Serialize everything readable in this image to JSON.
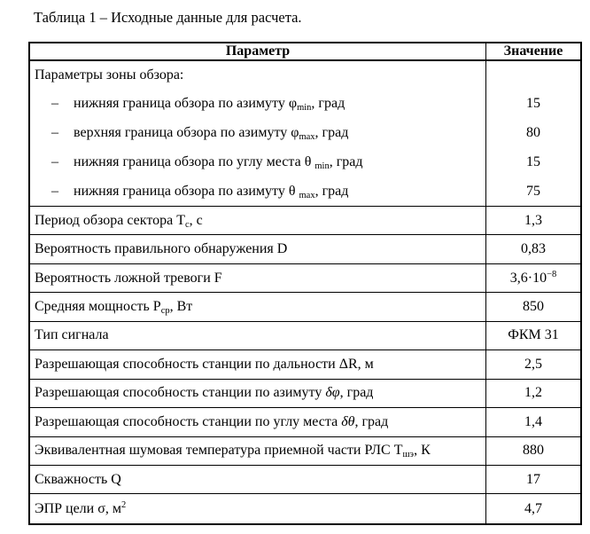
{
  "colors": {
    "text": "#000000",
    "border": "#000000",
    "background": "#ffffff"
  },
  "doc": {
    "title": "Таблица 1 – Исходные данные для расчета."
  },
  "table": {
    "header": {
      "param": "Параметр",
      "value": "Значение"
    },
    "group": {
      "label": "Параметры зоны обзора:",
      "items": [
        {
          "dash": "–",
          "pre": "нижняя граница обзора по азимуту φ",
          "sub": "min",
          "post": ", град",
          "value": "15"
        },
        {
          "dash": "–",
          "pre": "верхняя граница обзора по азимуту φ",
          "sub": "max",
          "post": ", град",
          "value": "80"
        },
        {
          "dash": "–",
          "pre": "нижняя граница обзора по углу места θ ",
          "sub": "min",
          "post": ", град",
          "value": "15"
        },
        {
          "dash": "–",
          "pre": "нижняя граница обзора по азимуту θ ",
          "sub": "max",
          "post": ", град",
          "value": "75"
        }
      ]
    },
    "rows": [
      {
        "pre": "Период обзора сектора Т",
        "sub": "с",
        "post": ", с",
        "value": "1,3"
      },
      {
        "pre": "Вероятность правильного обнаружения D",
        "value": "0,83"
      },
      {
        "pre": "Вероятность ложной тревоги F",
        "value_pre": "3,6·10",
        "value_sup": "−8"
      },
      {
        "pre": "Средняя мощность Р",
        "sub": "ср",
        "post": ", Вт",
        "value": "850"
      },
      {
        "pre": "Тип сигнала",
        "value": "ФКМ 31"
      },
      {
        "pre": "Разрешающая способность станции по дальности ΔR, м",
        "value": "2,5"
      },
      {
        "pre": "Разрешающая способность станции по азимуту ",
        "italic": "δφ",
        "post": ", град",
        "value": "1,2"
      },
      {
        "pre": "Разрешающая способность станции по углу места ",
        "italic": "δθ",
        "post": ", град",
        "value": "1,4"
      },
      {
        "pre": "Эквивалентная шумовая температура приемной части РЛС Т",
        "sub": "шэ",
        "post": ", К",
        "value": "880"
      },
      {
        "pre": "Скважность Q",
        "value": "17"
      },
      {
        "pre": "ЭПР цели σ, м",
        "sup": "2",
        "value": "4,7"
      }
    ]
  }
}
